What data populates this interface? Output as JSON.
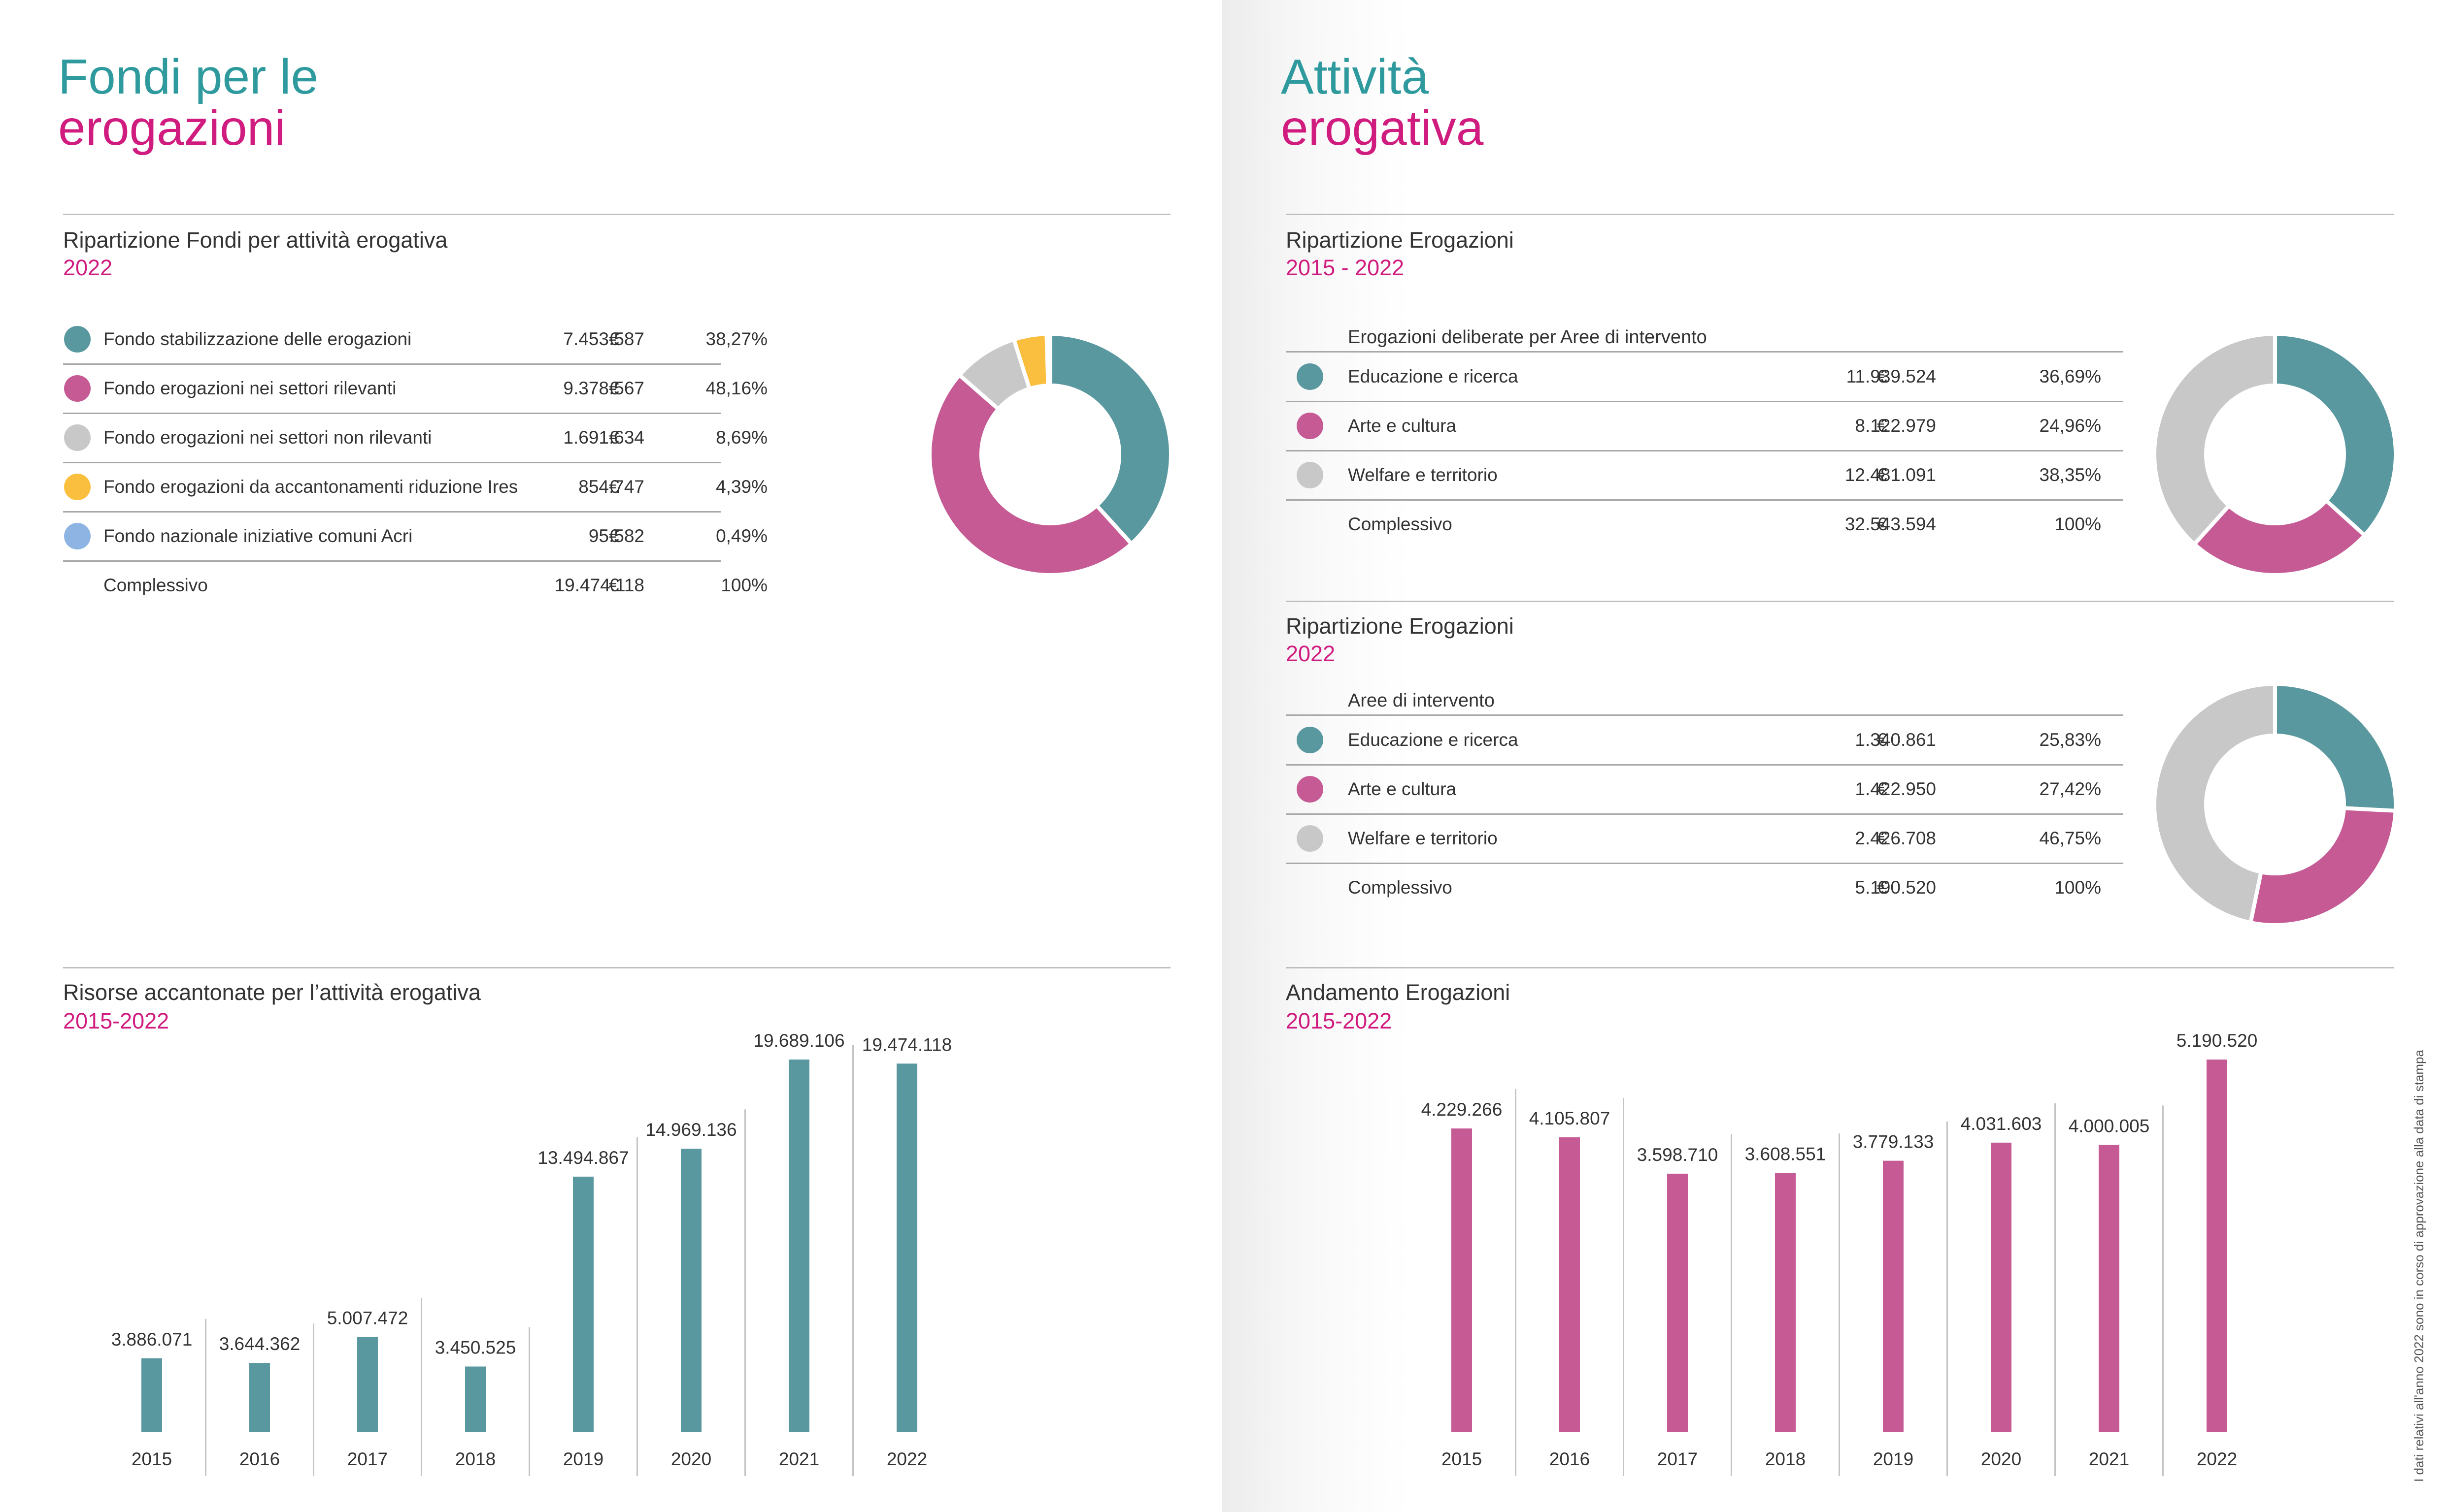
{
  "left_heading": {
    "line1": "Fondi per le",
    "line2": "erogazioni"
  },
  "right_heading": {
    "line1": "Attività",
    "line2": "erogativa"
  },
  "colors": {
    "teal": "#5a98a0",
    "magenta": "#c55a94",
    "gray": "#c8c8c8",
    "yellow": "#fbbf40",
    "blue": "#8eb4e3",
    "heading_teal": "#2f9a9e",
    "heading_magenta": "#d01b7f"
  },
  "fondi": {
    "title": "Ripartizione Fondi per attività erogativa",
    "subtitle": "2022",
    "currency": "€",
    "rows": [
      {
        "label": "Fondo stabilizzazione delle erogazioni",
        "value": "7.453.587",
        "pct": "38,27%",
        "color": "#5a98a0"
      },
      {
        "label": "Fondo erogazioni nei settori rilevanti",
        "value": "9.378.567",
        "pct": "48,16%",
        "color": "#c55a94"
      },
      {
        "label": "Fondo erogazioni nei settori non rilevanti",
        "value": "1.691.634",
        "pct": "8,69%",
        "color": "#c8c8c8"
      },
      {
        "label": "Fondo erogazioni da accantonamenti riduzione Ires",
        "value": "854.747",
        "pct": "4,39%",
        "color": "#fbbf40"
      },
      {
        "label": "Fondo nazionale iniziative comuni Acri",
        "value": "95.582",
        "pct": "0,49%",
        "color": "#8eb4e3"
      }
    ],
    "total": {
      "label": "Complessivo",
      "value": "19.474.118",
      "pct": "100%"
    }
  },
  "erog_1522": {
    "title": "Ripartizione Erogazioni",
    "subtitle": "2015 - 2022",
    "caption": "Erogazioni deliberate per Aree di intervento",
    "currency": "€",
    "rows": [
      {
        "label": "Educazione e ricerca",
        "value": "11.939.524",
        "pct": "36,69%",
        "color": "#5a98a0"
      },
      {
        "label": "Arte e cultura",
        "value": "8.122.979",
        "pct": "24,96%",
        "color": "#c55a94"
      },
      {
        "label": "Welfare e territorio",
        "value": "12.481.091",
        "pct": "38,35%",
        "color": "#c8c8c8"
      }
    ],
    "total": {
      "label": "Complessivo",
      "value": "32.543.594",
      "pct": "100%"
    }
  },
  "erog_2022": {
    "title": "Ripartizione Erogazioni",
    "subtitle": "2022",
    "caption": "Aree di intervento",
    "currency": "€",
    "rows": [
      {
        "label": "Educazione e ricerca",
        "value": "1.340.861",
        "pct": "25,83%",
        "color": "#5a98a0"
      },
      {
        "label": "Arte e cultura",
        "value": "1.422.950",
        "pct": "27,42%",
        "color": "#c55a94"
      },
      {
        "label": "Welfare e territorio",
        "value": "2.426.708",
        "pct": "46,75%",
        "color": "#c8c8c8"
      }
    ],
    "total": {
      "label": "Complessivo",
      "value": "5.190.520",
      "pct": "100%"
    }
  },
  "risorse": {
    "title": "Risorse accantonate per l’attività erogativa",
    "subtitle": "2015-2022"
  },
  "andamento": {
    "title": "Andamento Erogazioni",
    "subtitle": "2015-2022"
  },
  "side_note": "I dati relativi all'anno 2022 sono in corso di approvazione alla data di stampa",
  "chart_data": [
    {
      "type": "pie",
      "title": "Ripartizione Fondi per attività erogativa",
      "subtitle": "2022",
      "categories": [
        "Fondo stabilizzazione delle erogazioni",
        "Fondo erogazioni nei settori rilevanti",
        "Fondo erogazioni nei settori non rilevanti",
        "Fondo erogazioni da accantonamenti riduzione Ires",
        "Fondo nazionale iniziative comuni Acri"
      ],
      "values": [
        7453587,
        9378567,
        1691634,
        854747,
        95582
      ],
      "colors": [
        "#5a98a0",
        "#c55a94",
        "#c8c8c8",
        "#fbbf40",
        "#8eb4e3"
      ]
    },
    {
      "type": "pie",
      "title": "Ripartizione Erogazioni",
      "subtitle": "2015 - 2022",
      "categories": [
        "Educazione e ricerca",
        "Arte e cultura",
        "Welfare e territorio"
      ],
      "values": [
        11939524,
        8122979,
        12481091
      ],
      "colors": [
        "#5a98a0",
        "#c55a94",
        "#c8c8c8"
      ]
    },
    {
      "type": "pie",
      "title": "Ripartizione Erogazioni",
      "subtitle": "2022",
      "categories": [
        "Educazione e ricerca",
        "Arte e cultura",
        "Welfare e territorio"
      ],
      "values": [
        1340861,
        1422950,
        2426708
      ],
      "colors": [
        "#5a98a0",
        "#c55a94",
        "#c8c8c8"
      ]
    },
    {
      "type": "bar",
      "title": "Risorse accantonate per l’attività erogativa",
      "subtitle": "2015-2022",
      "categories": [
        "2015",
        "2016",
        "2017",
        "2018",
        "2019",
        "2020",
        "2021",
        "2022"
      ],
      "values": [
        3886071,
        3644362,
        5007472,
        3450525,
        13494867,
        14969136,
        19689106,
        19474118
      ],
      "labels": [
        "3.886.071",
        "3.644.362",
        "5.007.472",
        "3.450.525",
        "13.494.867",
        "14.969.136",
        "19.689.106",
        "19.474.118"
      ],
      "color": "#5a98a0",
      "ylim": [
        0,
        19689106
      ]
    },
    {
      "type": "bar",
      "title": "Andamento Erogazioni",
      "subtitle": "2015-2022",
      "categories": [
        "2015",
        "2016",
        "2017",
        "2018",
        "2019",
        "2020",
        "2021",
        "2022"
      ],
      "values": [
        4229266,
        4105807,
        3598710,
        3608551,
        3779133,
        4031603,
        4000005,
        5190520
      ],
      "labels": [
        "4.229.266",
        "4.105.807",
        "3.598.710",
        "3.608.551",
        "3.779.133",
        "4.031.603",
        "4.000.005",
        "5.190.520"
      ],
      "color": "#c55a94",
      "ylim": [
        0,
        5190520
      ]
    }
  ]
}
